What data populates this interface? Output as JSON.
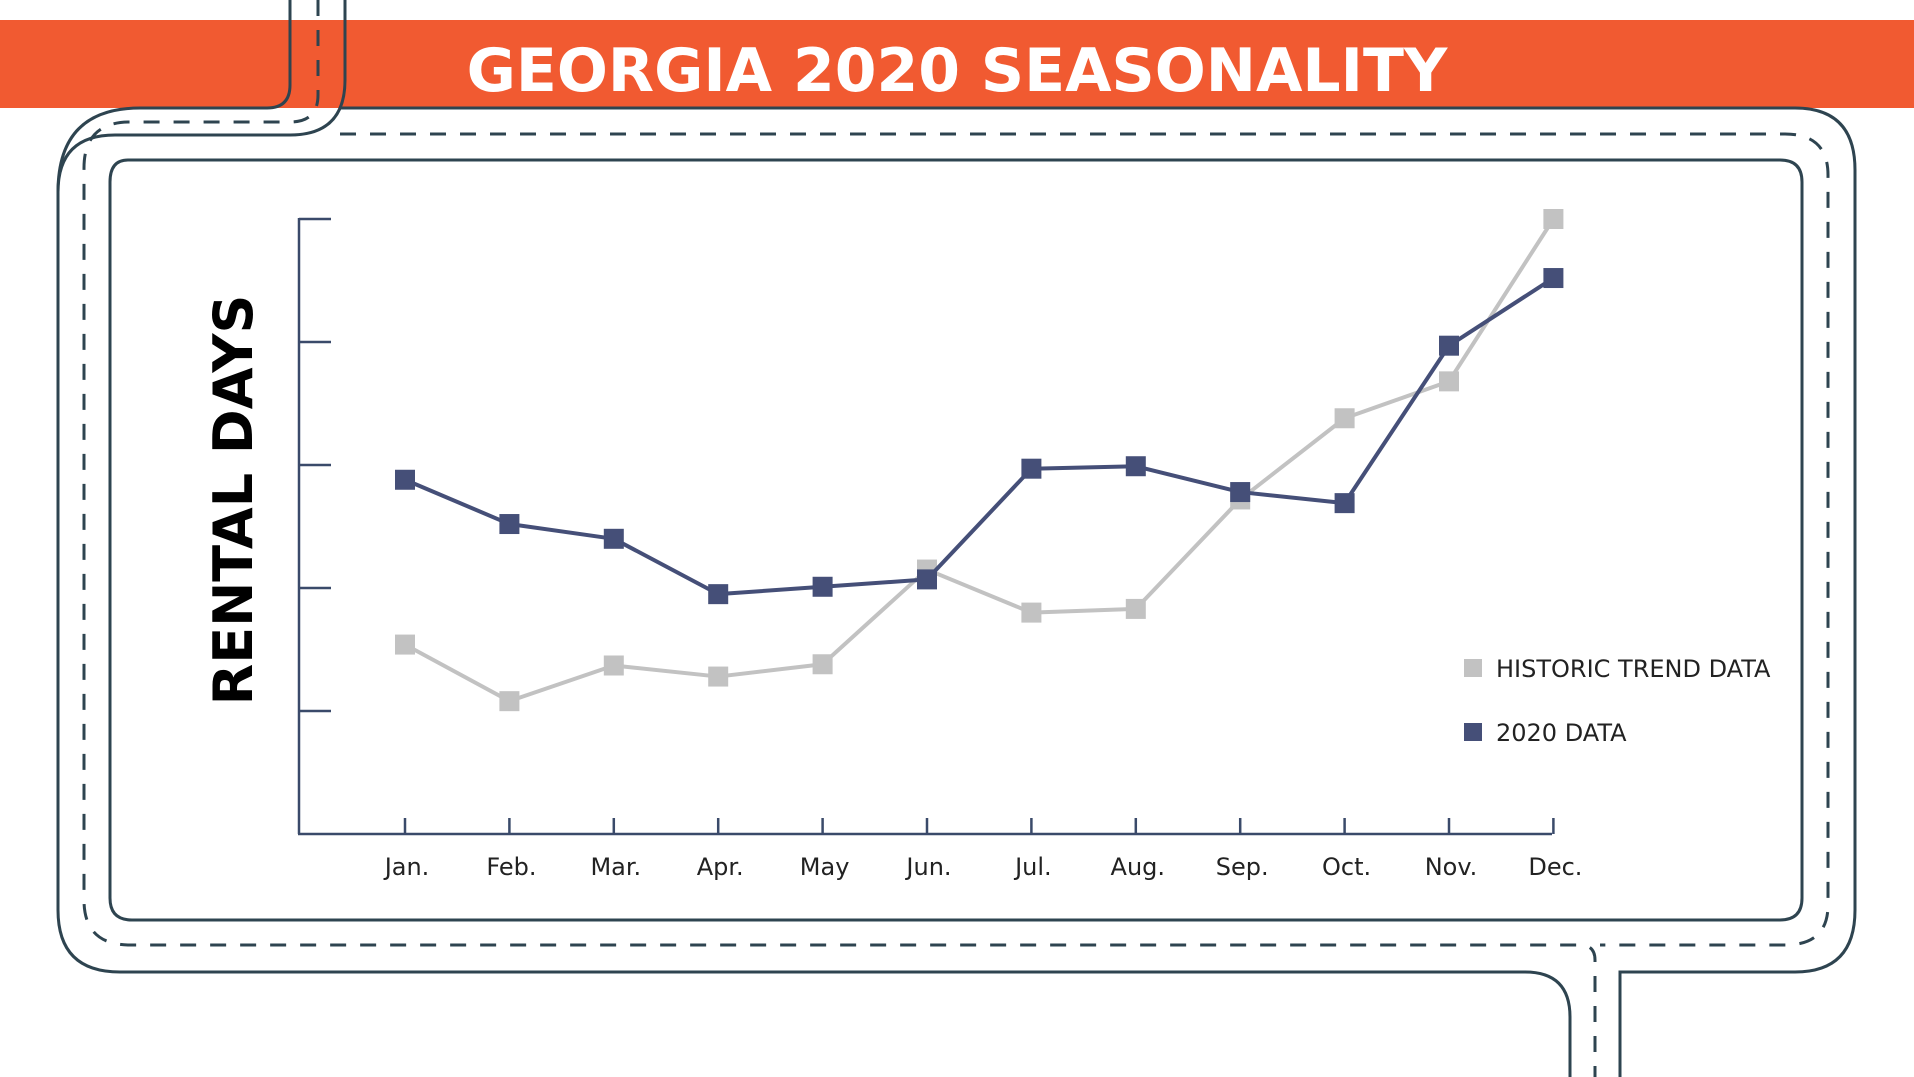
{
  "title": "GEORGIA 2020 SEASONALITY",
  "colors": {
    "banner": "#F15A31",
    "road": "#2E4450",
    "historic": "#C2C2C2",
    "data2020": "#454F78",
    "axis": "#3A4A6A"
  },
  "chart_data": {
    "type": "line",
    "title": "GEORGIA 2020 SEASONALITY",
    "xlabel": "",
    "ylabel": "RENTAL DAYS",
    "categories": [
      "Jan.",
      "Feb.",
      "Mar.",
      "Apr.",
      "May",
      "Jun.",
      "Jul.",
      "Aug.",
      "Sep.",
      "Oct.",
      "Nov.",
      "Dec."
    ],
    "ylim": [
      0,
      5
    ],
    "y_tick_count": 5,
    "y_tick_labels_shown": false,
    "grid": false,
    "legend_position": "right",
    "series": [
      {
        "name": "HISTORIC TREND DATA",
        "color": "#C2C2C2",
        "values": [
          1.54,
          1.08,
          1.37,
          1.28,
          1.38,
          2.15,
          1.8,
          1.83,
          2.72,
          3.38,
          3.68,
          5.0
        ]
      },
      {
        "name": "2020 DATA",
        "color": "#454F78",
        "values": [
          2.88,
          2.52,
          2.4,
          1.95,
          2.01,
          2.07,
          2.97,
          2.99,
          2.78,
          2.69,
          3.97,
          4.52
        ]
      }
    ]
  }
}
